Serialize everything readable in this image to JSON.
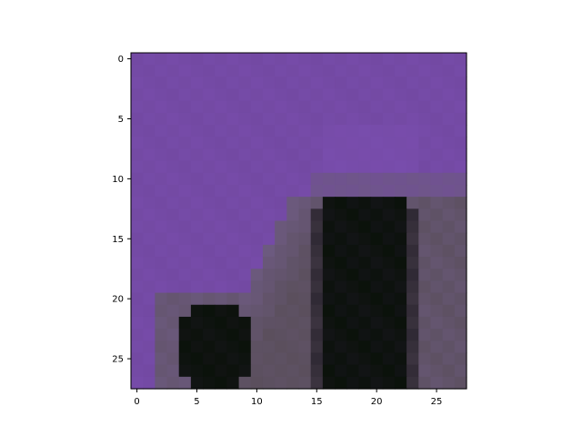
{
  "chart_data": {
    "type": "heatmap",
    "title": "",
    "xlabel": "",
    "ylabel": "",
    "width": 28,
    "height": 28,
    "x_ticks": [
      "0",
      "5",
      "10",
      "15",
      "20",
      "25"
    ],
    "y_ticks": [
      "0",
      "5",
      "10",
      "15",
      "20",
      "25"
    ],
    "x_tick_values": [
      0,
      5,
      10,
      15,
      20,
      25
    ],
    "y_tick_values": [
      0,
      5,
      10,
      15,
      20,
      25
    ],
    "xlim": [
      -0.5,
      27.5
    ],
    "ylim": [
      27.5,
      -0.5
    ],
    "grid": false,
    "palette": {
      "sky": "#7349a3",
      "sky_light": "#7a4eaf",
      "haze": "#6d5a80",
      "gray": "#5a4f5c",
      "dark": "#1a1620",
      "black": "#0b120b"
    },
    "content_description": "pixelated image of purple sky above dark silhouette shapes"
  }
}
